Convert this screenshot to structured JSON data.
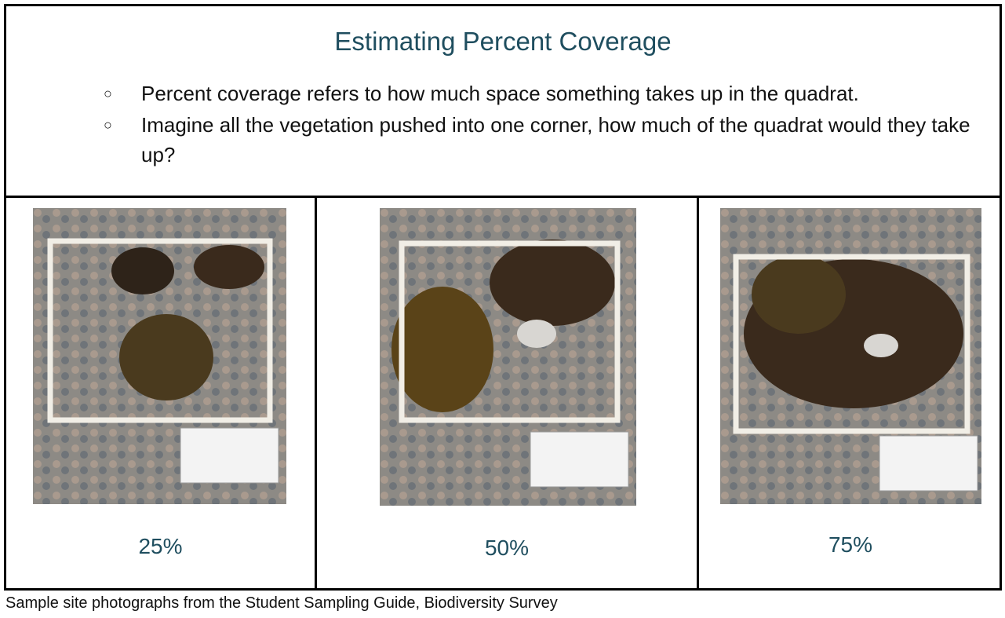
{
  "header": {
    "title": "Estimating Percent Coverage",
    "bullets": [
      "Percent coverage refers to how much space something takes up in the quadrat.",
      "Imagine all the vegetation pushed into one corner, how much of the quadrat would they take up?"
    ]
  },
  "panels": [
    {
      "label": "25%"
    },
    {
      "label": "50%"
    },
    {
      "label": "75%"
    }
  ],
  "caption": "Sample site photographs from the Student Sampling Guide, Biodiversity Survey"
}
